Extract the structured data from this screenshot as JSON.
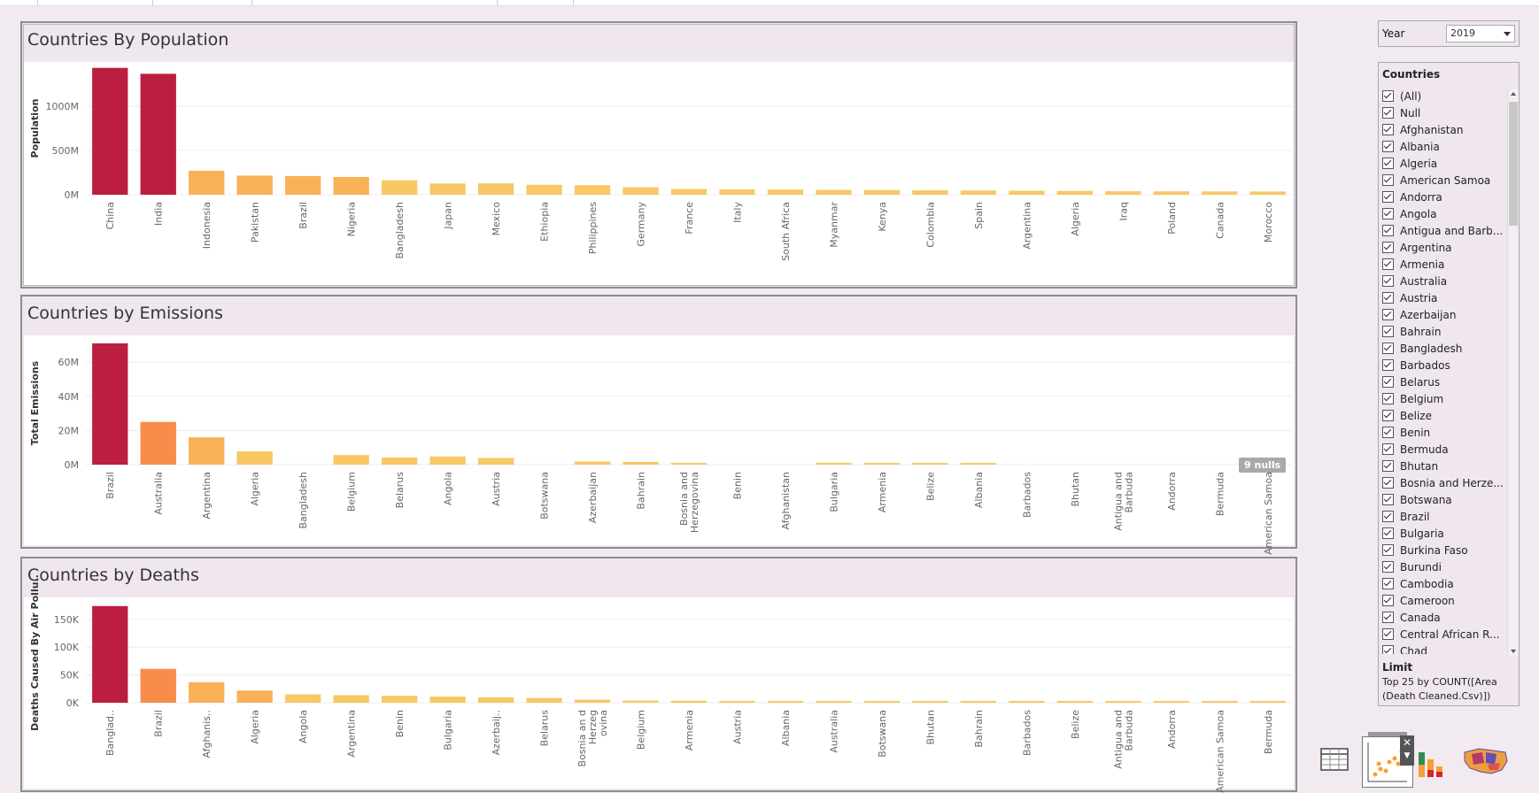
{
  "chart_data": [
    {
      "type": "bar",
      "title": "Countries By Population",
      "ylabel": "Population",
      "xlabel": "",
      "ylim": [
        0,
        1500000000
      ],
      "yticks": [
        "0M",
        "500M",
        "1000M"
      ],
      "categories": [
        "China",
        "India",
        "Indonesia",
        "Pakistan",
        "Brazil",
        "Nigeria",
        "Bangladesh",
        "Japan",
        "Mexico",
        "Ethiopia",
        "Philippines",
        "Germany",
        "France",
        "Italy",
        "South Africa",
        "Myanmar",
        "Kenya",
        "Colombia",
        "Spain",
        "Argentina",
        "Algeria",
        "Iraq",
        "Poland",
        "Canada",
        "Morocco"
      ],
      "values": [
        1433000000,
        1366000000,
        270000000,
        216000000,
        211000000,
        200000000,
        163000000,
        127000000,
        128000000,
        112000000,
        108000000,
        84000000,
        65000000,
        60000000,
        58000000,
        54000000,
        52000000,
        50000000,
        47000000,
        45000000,
        43000000,
        39000000,
        38000000,
        37000000,
        36000000
      ]
    },
    {
      "type": "bar",
      "title": "Countries by Emissions",
      "ylabel": "Total Emissions",
      "xlabel": "",
      "ylim": [
        0,
        72000000
      ],
      "yticks": [
        "0M",
        "20M",
        "40M",
        "60M"
      ],
      "categories": [
        "Brazil",
        "Australia",
        "Argentina",
        "Algeria",
        "Bangladesh",
        "Belgium",
        "Belarus",
        "Angola",
        "Austria",
        "Botswana",
        "Azerbaijan",
        "Bahrain",
        "Bosnia and Herzegovina",
        "Benin",
        "Afghanistan",
        "Bulgaria",
        "Armenia",
        "Belize",
        "Albania",
        "Barbados",
        "Bhutan",
        "Antigua and Barbuda",
        "Andorra",
        "Bermuda",
        "American Samoa"
      ],
      "values": [
        71000000,
        25000000,
        16000000,
        7800000,
        0,
        5600000,
        4200000,
        4800000,
        3900000,
        0,
        1800000,
        1600000,
        900000,
        0,
        0,
        1100000,
        600000,
        400000,
        500000,
        0,
        0,
        0,
        0,
        0,
        0
      ],
      "nulls_badge": "9 nulls"
    },
    {
      "type": "bar",
      "title": "Countries by Deaths",
      "ylabel": "Deaths Caused By Air Pollu..",
      "xlabel": "",
      "ylim": [
        0,
        180000
      ],
      "yticks": [
        "0K",
        "50K",
        "100K",
        "150K"
      ],
      "categories": [
        "Banglad..",
        "Brazil",
        "Afghanis..",
        "Algeria",
        "Angola",
        "Argentina",
        "Benin",
        "Bulgaria",
        "Azerbaij..",
        "Belarus",
        "Bosnia an d Herzeg ovina",
        "Belgium",
        "Armenia",
        "Austria",
        "Albania",
        "Australia",
        "Botswana",
        "Bhutan",
        "Bahrain",
        "Barbados",
        "Belize",
        "Antigua and Barbuda",
        "Andorra",
        "American Samoa",
        "Bermuda"
      ],
      "values": [
        174000,
        61000,
        37000,
        22000,
        15000,
        13500,
        12500,
        11000,
        9500,
        8500,
        5500,
        4000,
        3500,
        2500,
        2500,
        2200,
        1500,
        1000,
        900,
        250,
        200,
        150,
        100,
        100,
        80
      ]
    }
  ],
  "colors": {
    "top": "#bb1e3f",
    "orange": "#f98c4b",
    "mid": "#f9b158",
    "light": "#f7c863",
    "panel_bg": "#efe6ef"
  },
  "year": {
    "label": "Year",
    "value": "2019"
  },
  "countries_filter": {
    "title": "Countries",
    "items": [
      "(All)",
      "Null",
      "Afghanistan",
      "Albania",
      "Algeria",
      "American Samoa",
      "Andorra",
      "Angola",
      "Antigua and Barb...",
      "Argentina",
      "Armenia",
      "Australia",
      "Austria",
      "Azerbaijan",
      "Bahrain",
      "Bangladesh",
      "Barbados",
      "Belarus",
      "Belgium",
      "Belize",
      "Benin",
      "Bermuda",
      "Bhutan",
      "Bosnia and Herze...",
      "Botswana",
      "Brazil",
      "Bulgaria",
      "Burkina Faso",
      "Burundi",
      "Cambodia",
      "Cameroon",
      "Canada",
      "Central African R...",
      "Chad"
    ],
    "limit_label": "Limit",
    "limit_text": "Top 25 by COUNT([Area (Death Cleaned.Csv)])"
  },
  "thumbnails": [
    "text-table-icon",
    "scatter-chart-icon",
    "stacked-bar-icon",
    "filled-map-icon"
  ]
}
